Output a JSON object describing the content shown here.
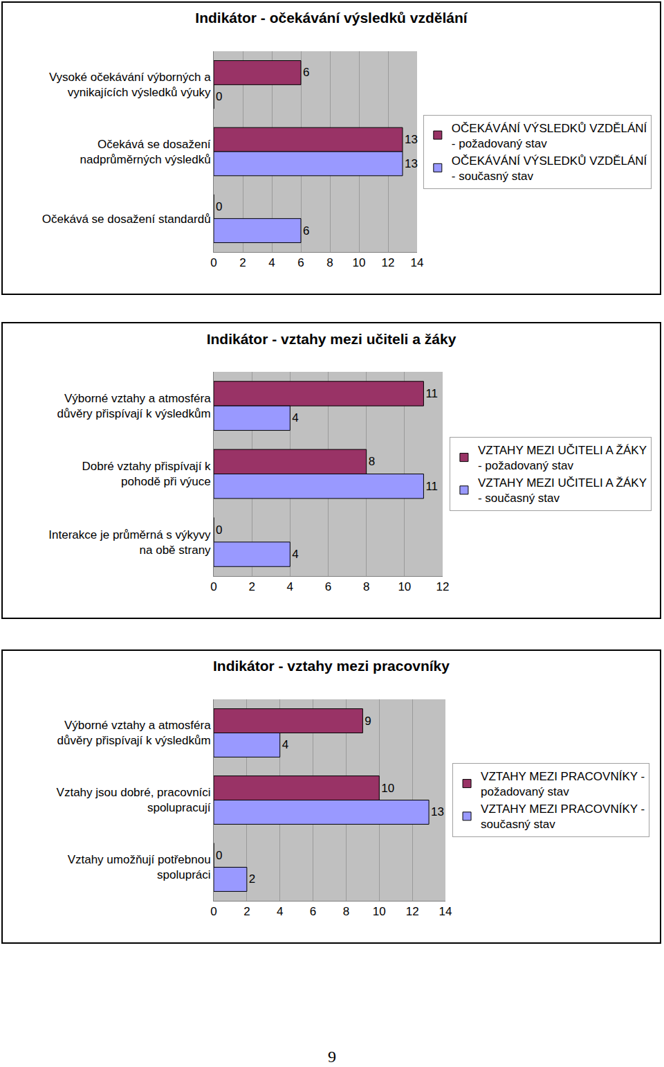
{
  "chart_data": [
    {
      "type": "bar",
      "orientation": "horizontal",
      "title": "Indikátor - očekávání výsledků vzdělání",
      "categories": [
        "Vysoké očekávání výborných a vynikajících výsledků výuky",
        "Očekává se dosažení nadprůměrných výsledků",
        "Očekává se dosažení standardů"
      ],
      "series": [
        {
          "name": "OČEKÁVÁNÍ VÝSLEDKŮ VZDĚLÁNÍ - požadovaný stav",
          "color": "#993366",
          "values": [
            6,
            13,
            0
          ]
        },
        {
          "name": "OČEKÁVÁNÍ VÝSLEDKŮ VZDĚLÁNÍ - současný stav",
          "color": "#9999ff",
          "values": [
            0,
            13,
            6
          ]
        }
      ],
      "xlim": [
        0,
        14
      ],
      "xticks": [
        0,
        2,
        4,
        6,
        8,
        10,
        12,
        14
      ],
      "grid": true,
      "legend": "right",
      "data_labels": true
    },
    {
      "type": "bar",
      "orientation": "horizontal",
      "title": "Indikátor - vztahy mezi učiteli a žáky",
      "categories": [
        "Výborné vztahy a atmosféra důvěry přispívají k výsledkům",
        "Dobré vztahy přispívají k pohodě při výuce",
        "Interakce je průměrná s výkyvy na obě strany"
      ],
      "series": [
        {
          "name": "VZTAHY MEZI UČITELI A ŽÁKY - požadovaný stav",
          "color": "#993366",
          "values": [
            11,
            8,
            0
          ]
        },
        {
          "name": "VZTAHY MEZI UČITELI A ŽÁKY - současný stav",
          "color": "#9999ff",
          "values": [
            4,
            11,
            4
          ]
        }
      ],
      "xlim": [
        0,
        12
      ],
      "xticks": [
        0,
        2,
        4,
        6,
        8,
        10,
        12
      ],
      "grid": true,
      "legend": "right",
      "data_labels": true
    },
    {
      "type": "bar",
      "orientation": "horizontal",
      "title": "Indikátor - vztahy mezi pracovníky",
      "categories": [
        "Výborné vztahy a atmosféra důvěry přispívají k výsledkům",
        "Vztahy jsou dobré, pracovníci spolupracují",
        "Vztahy umožňují potřebnou spolupráci"
      ],
      "series": [
        {
          "name": "VZTAHY MEZI PRACOVNÍKY - požadovaný stav",
          "color": "#993366",
          "values": [
            9,
            10,
            0
          ]
        },
        {
          "name": "VZTAHY MEZI PRACOVNÍKY - současný stav",
          "color": "#9999ff",
          "values": [
            4,
            13,
            2
          ]
        }
      ],
      "xlim": [
        0,
        14
      ],
      "xticks": [
        0,
        2,
        4,
        6,
        8,
        10,
        12,
        14
      ],
      "grid": true,
      "legend": "right",
      "data_labels": true
    }
  ],
  "page_number": "9"
}
